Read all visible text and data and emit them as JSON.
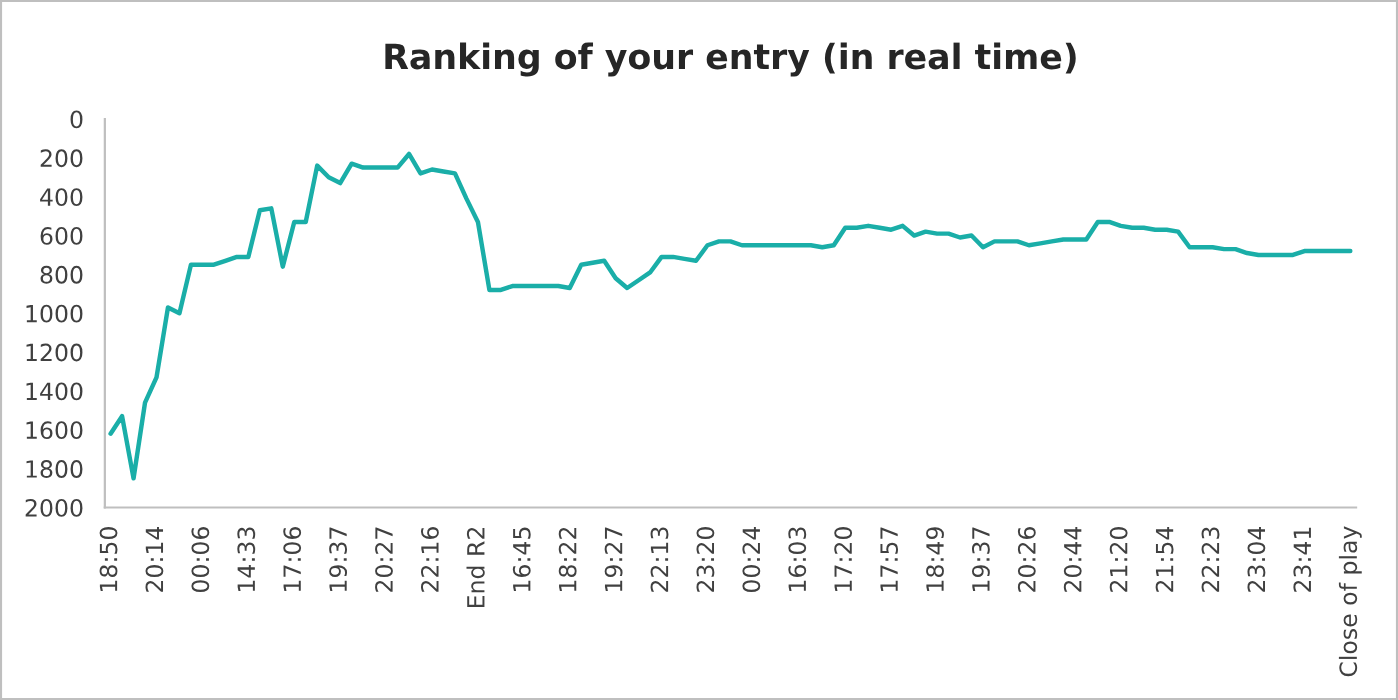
{
  "chart_data": {
    "type": "line",
    "title": "Ranking of your entry (in real time)",
    "categories": [
      "18:50",
      null,
      null,
      null,
      "20:14",
      null,
      null,
      null,
      "00:06",
      null,
      null,
      null,
      "14:33",
      null,
      null,
      null,
      "17:06",
      null,
      null,
      null,
      "19:37",
      null,
      null,
      null,
      "20:27",
      null,
      null,
      null,
      "22:16",
      null,
      null,
      null,
      "End R2",
      null,
      null,
      null,
      "16:45",
      null,
      null,
      null,
      "18:22",
      null,
      null,
      null,
      "19:27",
      null,
      null,
      null,
      "22:13",
      null,
      null,
      null,
      "23:20",
      null,
      null,
      null,
      "00:24",
      null,
      null,
      null,
      "16:03",
      null,
      null,
      null,
      "17:20",
      null,
      null,
      null,
      "17:57",
      null,
      null,
      null,
      "18:49",
      null,
      null,
      null,
      "19:37",
      null,
      null,
      null,
      "20:26",
      null,
      null,
      null,
      "20:44",
      null,
      null,
      null,
      "21:20",
      null,
      null,
      null,
      "21:54",
      null,
      null,
      null,
      "22:23",
      null,
      null,
      null,
      "23:04",
      null,
      null,
      null,
      "23:41",
      null,
      null,
      null,
      "Close of play"
    ],
    "series": [
      {
        "color": "#1aaea8",
        "values": [
          1620,
          1530,
          1850,
          1460,
          1330,
          970,
          1000,
          750,
          750,
          750,
          730,
          710,
          710,
          470,
          460,
          760,
          530,
          530,
          240,
          300,
          330,
          230,
          250,
          250,
          250,
          250,
          180,
          280,
          260,
          270,
          280,
          410,
          530,
          880,
          880,
          860,
          860,
          860,
          860,
          860,
          870,
          750,
          740,
          730,
          820,
          870,
          830,
          790,
          710,
          710,
          720,
          730,
          650,
          630,
          630,
          650,
          650,
          650,
          650,
          650,
          650,
          650,
          660,
          650,
          560,
          560,
          550,
          560,
          570,
          550,
          600,
          580,
          590,
          590,
          610,
          600,
          660,
          630,
          630,
          630,
          650,
          640,
          630,
          620,
          620,
          620,
          530,
          530,
          550,
          560,
          560,
          570,
          570,
          580,
          660,
          660,
          660,
          670,
          670,
          690,
          700,
          700,
          700,
          700,
          680,
          680,
          680,
          680,
          680
        ]
      }
    ],
    "ylim": [
      2000,
      0
    ],
    "yticks": [
      0,
      200,
      400,
      600,
      800,
      1000,
      1200,
      1400,
      1600,
      1800,
      2000
    ],
    "grid": false,
    "legend": false,
    "marker": "none",
    "line_style": "solid"
  }
}
